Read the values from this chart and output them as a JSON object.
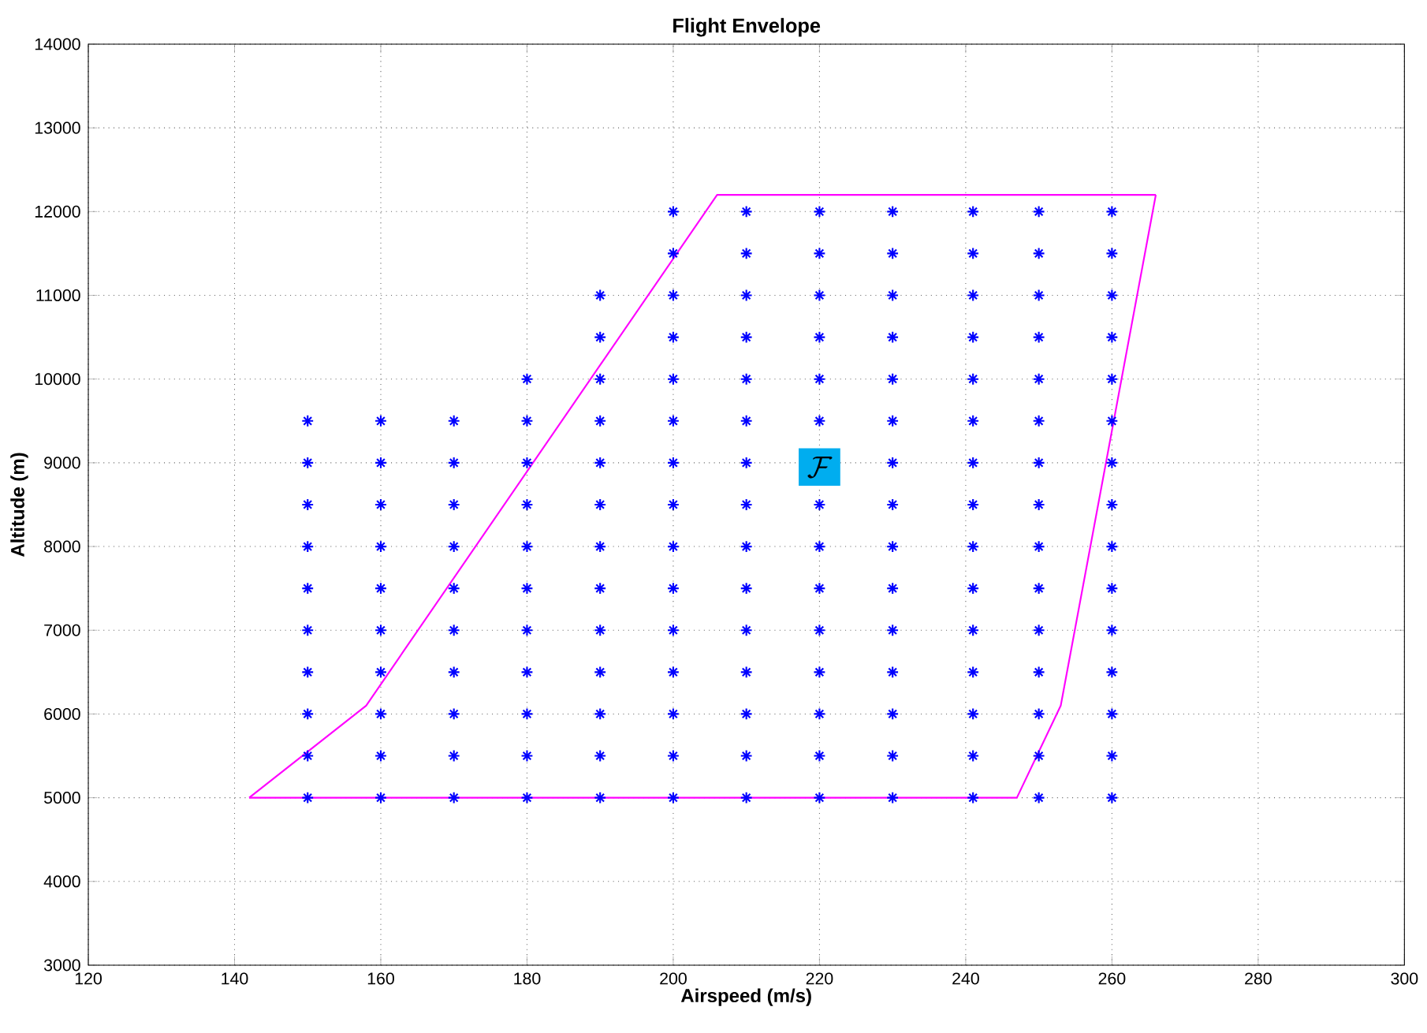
{
  "chart_data": {
    "type": "scatter",
    "title": "Flight Envelope",
    "xlabel": "Airspeed (m/s)",
    "ylabel": "Altitude (m)",
    "xlim": [
      120,
      300
    ],
    "xticks": [
      120,
      140,
      160,
      180,
      200,
      220,
      240,
      260,
      280,
      300
    ],
    "ylim": [
      3000,
      14000
    ],
    "yticks": [
      3000,
      4000,
      5000,
      6000,
      7000,
      8000,
      9000,
      10000,
      11000,
      12000,
      13000,
      14000
    ],
    "grid": true,
    "annotations": [
      {
        "text": "\\mathcal{F}",
        "x": 220,
        "y": 8950
      }
    ],
    "series": [
      {
        "type": "line",
        "color": "#ff00ff",
        "marker": "none",
        "line_style": "solid",
        "x": [
          142,
          158,
          206,
          266
        ],
        "values": [
          5000,
          6100,
          12200,
          12200
        ]
      },
      {
        "type": "line",
        "color": "#ff00ff",
        "marker": "none",
        "line_style": "solid",
        "x": [
          142,
          247,
          253,
          266
        ],
        "values": [
          5000,
          5000,
          6100,
          12200
        ]
      },
      {
        "type": "scatter",
        "color": "#0000ff",
        "marker": "cross",
        "x": [
          150,
          150,
          150,
          150,
          150,
          150,
          150,
          150,
          150,
          150,
          160,
          160,
          160,
          160,
          160,
          160,
          160,
          160,
          160,
          160,
          170,
          170,
          170,
          170,
          170,
          170,
          170,
          170,
          170,
          170,
          180,
          180,
          180,
          180,
          180,
          180,
          180,
          180,
          180,
          180,
          180,
          190,
          190,
          190,
          190,
          190,
          190,
          190,
          190,
          190,
          190,
          190,
          190,
          190,
          200,
          200,
          200,
          200,
          200,
          200,
          200,
          200,
          200,
          200,
          200,
          200,
          200,
          200,
          200,
          210,
          210,
          210,
          210,
          210,
          210,
          210,
          210,
          210,
          210,
          210,
          210,
          210,
          210,
          210,
          220,
          220,
          220,
          220,
          220,
          220,
          220,
          220,
          220,
          220,
          220,
          220,
          220,
          220,
          230,
          230,
          230,
          230,
          230,
          230,
          230,
          230,
          230,
          230,
          230,
          230,
          230,
          230,
          230,
          241,
          241,
          241,
          241,
          241,
          241,
          241,
          241,
          241,
          241,
          241,
          241,
          241,
          241,
          241,
          250,
          250,
          250,
          250,
          250,
          250,
          250,
          250,
          250,
          250,
          250,
          250,
          250,
          250,
          250,
          260,
          260,
          260,
          260,
          260,
          260,
          260,
          260,
          260,
          260,
          260,
          260,
          260,
          260,
          260
        ],
        "values": [
          5000,
          5500,
          6000,
          6500,
          7000,
          7500,
          8000,
          8500,
          9000,
          9500,
          5000,
          5500,
          6000,
          6500,
          7000,
          7500,
          8000,
          8500,
          9000,
          9500,
          5000,
          5500,
          6000,
          6500,
          7000,
          7500,
          8000,
          8500,
          9000,
          9500,
          5000,
          5500,
          6000,
          6500,
          7000,
          7500,
          8000,
          8500,
          9000,
          9500,
          10000,
          5000,
          5500,
          6000,
          6500,
          7000,
          7500,
          8000,
          8500,
          9000,
          9500,
          10000,
          10500,
          11000,
          5000,
          5500,
          6000,
          6500,
          7000,
          7500,
          8000,
          8500,
          9000,
          9500,
          10000,
          10500,
          11000,
          11500,
          12000,
          5000,
          5500,
          6000,
          6500,
          7000,
          7500,
          8000,
          8500,
          9000,
          9500,
          10000,
          10500,
          11000,
          11500,
          12000,
          5000,
          5500,
          6000,
          6500,
          7000,
          7500,
          8000,
          8500,
          9500,
          10000,
          10500,
          11000,
          11500,
          12000,
          5000,
          5500,
          6000,
          6500,
          7000,
          7500,
          8000,
          8500,
          9000,
          9500,
          10000,
          10500,
          11000,
          11500,
          12000,
          5000,
          5500,
          6000,
          6500,
          7000,
          7500,
          8000,
          8500,
          9000,
          9500,
          10000,
          10500,
          11000,
          11500,
          12000,
          5000,
          5500,
          6000,
          6500,
          7000,
          7500,
          8000,
          8500,
          9000,
          9500,
          10000,
          10500,
          11000,
          11500,
          12000,
          5000,
          5500,
          6000,
          6500,
          7000,
          7500,
          8000,
          8500,
          9000,
          9500,
          10000,
          10500,
          11000,
          11500,
          12000
        ]
      }
    ]
  }
}
